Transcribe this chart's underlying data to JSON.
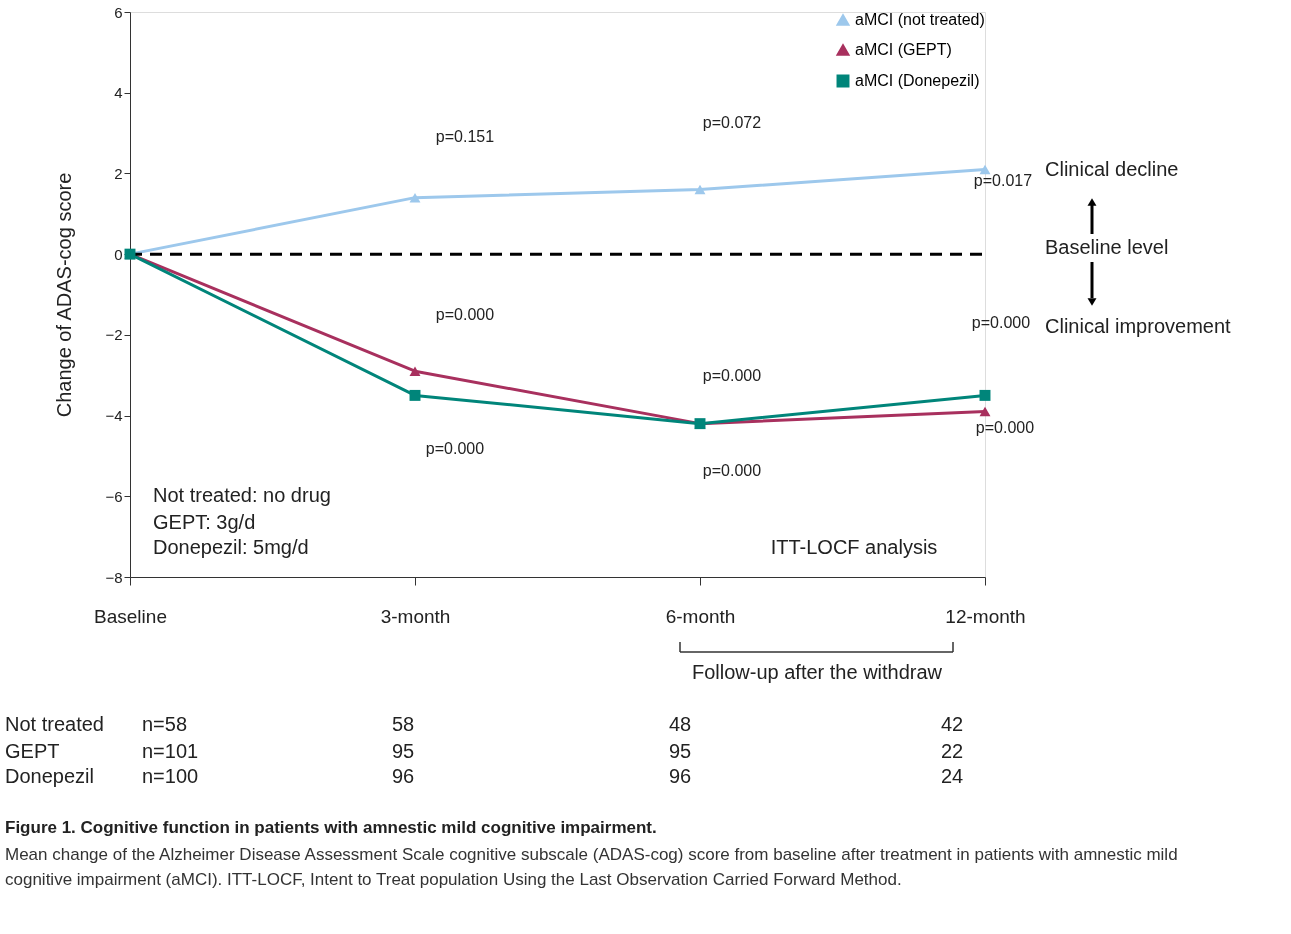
{
  "chart_data": {
    "type": "line",
    "ylabel": "Change of ADAS-cog score",
    "categories": [
      "Baseline",
      "3-month",
      "6-month",
      "12-month"
    ],
    "series": [
      {
        "name": "aMCI (not treated)",
        "color": "#9dc8ec",
        "marker": "triangle",
        "values": [
          0,
          1.4,
          1.6,
          2.1
        ]
      },
      {
        "name": "aMCI (GEPT)",
        "color": "#a8305e",
        "marker": "triangle",
        "values": [
          0,
          -2.9,
          -4.2,
          -3.9
        ]
      },
      {
        "name": "aMCI (Donepezil)",
        "color": "#00857a",
        "marker": "square",
        "values": [
          0,
          -3.5,
          -4.2,
          -3.5
        ]
      }
    ],
    "ylim": [
      -8,
      6
    ],
    "yticks": [
      -8,
      -6,
      -4,
      -2,
      0,
      2,
      4,
      6
    ],
    "grid": false,
    "legend": "top right",
    "ref_lines": [
      {
        "axis": "y",
        "value": 0,
        "color": "#000000",
        "line_style": "dashed"
      }
    ],
    "annotations": [
      "p=0.151",
      "p=0.072",
      "p=0.017",
      "p=0.000",
      "p=0.000",
      "p=0.000",
      "p=0.000",
      "p=0.000",
      "p=0.000",
      "Clinical decline",
      "Baseline level",
      "Clinical improvement",
      "Not treated:  no drug",
      "GEPT: 3g/d",
      "Donepezil: 5mg/d",
      "ITT-LOCF analysis",
      "Follow-up after the withdraw",
      "Not treated",
      "n=58",
      "58",
      "48",
      "42",
      "GEPT",
      "n=101",
      "95",
      "95",
      "22",
      "Donepezil",
      "n=100",
      "96",
      "96",
      "24",
      "Figure 1. Cognitive function in patients with amnestic mild cognitive impairment.",
      "Mean change of the Alzheimer Disease Assessment Scale cognitive subscale (ADAS-cog) score from baseline after treatment in patients with amnestic mild cognitive impairment (aMCI). ITT-LOCF, Intent to Treat population Using the Last Observation Carried Forward Method."
    ]
  }
}
